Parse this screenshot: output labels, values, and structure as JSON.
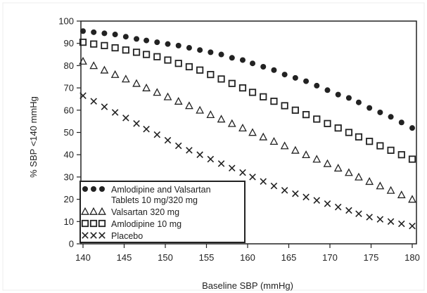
{
  "chart_data": {
    "type": "scatter",
    "xlabel": "Baseline SBP (mmHg)",
    "ylabel": "% SBP <140 mmHg",
    "xlim": [
      140,
      180
    ],
    "ylim": [
      0,
      100
    ],
    "xticks": [
      "140",
      "145",
      "150",
      "155",
      "160",
      "165",
      "170",
      "175",
      "180"
    ],
    "yticks": [
      "0",
      "10",
      "20",
      "30",
      "40",
      "50",
      "60",
      "70",
      "80",
      "90",
      "100"
    ],
    "grid": false,
    "legend_position": "bottom-left",
    "colors": {
      "series": "#222222",
      "axis": "#222222"
    },
    "series": [
      {
        "name": "Amlodipine and Valsartan Tablets 10 mg/320 mg",
        "marker": "filled-circle",
        "x": [
          140,
          141.3,
          142.6,
          143.9,
          145.2,
          146.5,
          147.7,
          149,
          150.3,
          151.6,
          152.9,
          154.2,
          155.5,
          156.8,
          158.1,
          159.4,
          160.6,
          161.9,
          163.2,
          164.5,
          165.8,
          167.1,
          168.4,
          169.7,
          171,
          172.3,
          173.5,
          174.8,
          176.1,
          177.4,
          178.7,
          180
        ],
        "y": [
          95.5,
          95,
          94.5,
          94,
          93,
          92,
          91.3,
          90.5,
          89.7,
          89,
          88,
          87,
          86,
          85,
          83.5,
          82.5,
          81,
          79.5,
          78,
          76,
          74.5,
          73,
          71,
          69,
          67,
          65.5,
          63.5,
          61,
          59,
          57,
          54.5,
          52
        ]
      },
      {
        "name": "Valsartan 320 mg",
        "marker": "triangle",
        "x": [
          140,
          141.3,
          142.6,
          143.9,
          145.2,
          146.5,
          147.7,
          149,
          150.3,
          151.6,
          152.9,
          154.2,
          155.5,
          156.8,
          158.1,
          159.4,
          160.6,
          161.9,
          163.2,
          164.5,
          165.8,
          167.1,
          168.4,
          169.7,
          171,
          172.3,
          173.5,
          174.8,
          176.1,
          177.4,
          178.7,
          180
        ],
        "y": [
          82,
          80,
          78,
          76,
          74,
          72,
          70,
          68,
          66,
          64,
          62,
          60,
          58,
          56,
          54,
          52,
          50,
          48,
          46,
          44,
          42,
          40,
          38,
          36,
          34,
          32,
          30,
          28,
          26,
          24,
          22,
          20
        ]
      },
      {
        "name": "Amlodipine 10 mg",
        "marker": "square",
        "x": [
          140,
          141.3,
          142.6,
          143.9,
          145.2,
          146.5,
          147.7,
          149,
          150.3,
          151.6,
          152.9,
          154.2,
          155.5,
          156.8,
          158.1,
          159.4,
          160.6,
          161.9,
          163.2,
          164.5,
          165.8,
          167.1,
          168.4,
          169.7,
          171,
          172.3,
          173.5,
          174.8,
          176.1,
          177.4,
          178.7,
          180
        ],
        "y": [
          90.5,
          89.7,
          89,
          88,
          87,
          86,
          85,
          84,
          82.5,
          81,
          79.5,
          78,
          76,
          74,
          72,
          70,
          68,
          66,
          64,
          62,
          60,
          58,
          56,
          54,
          52,
          50,
          48,
          46,
          44,
          42,
          40,
          38
        ]
      },
      {
        "name": "Placebo",
        "marker": "cross",
        "x": [
          140,
          141.3,
          142.6,
          143.9,
          145.2,
          146.5,
          147.7,
          149,
          150.3,
          151.6,
          152.9,
          154.2,
          155.5,
          156.8,
          158.1,
          159.4,
          160.6,
          161.9,
          163.2,
          164.5,
          165.8,
          167.1,
          168.4,
          169.7,
          171,
          172.3,
          173.5,
          174.8,
          176.1,
          177.4,
          178.7,
          180
        ],
        "y": [
          66.5,
          64,
          61.5,
          59,
          56.5,
          54,
          51.5,
          49,
          46.5,
          44,
          42,
          40,
          38,
          36,
          34,
          32,
          30,
          28,
          26,
          24,
          22.5,
          21,
          19.5,
          18,
          16.5,
          15,
          13.5,
          12,
          11,
          10,
          9,
          8
        ]
      }
    ],
    "legend": [
      {
        "marker": "filled-circle",
        "label_lines": [
          "Amlodipine and Valsartan",
          "Tablets 10 mg/320 mg"
        ]
      },
      {
        "marker": "triangle",
        "label_lines": [
          "Valsartan 320 mg"
        ]
      },
      {
        "marker": "square",
        "label_lines": [
          "Amlodipine 10 mg"
        ]
      },
      {
        "marker": "cross",
        "label_lines": [
          "Placebo"
        ]
      }
    ]
  }
}
